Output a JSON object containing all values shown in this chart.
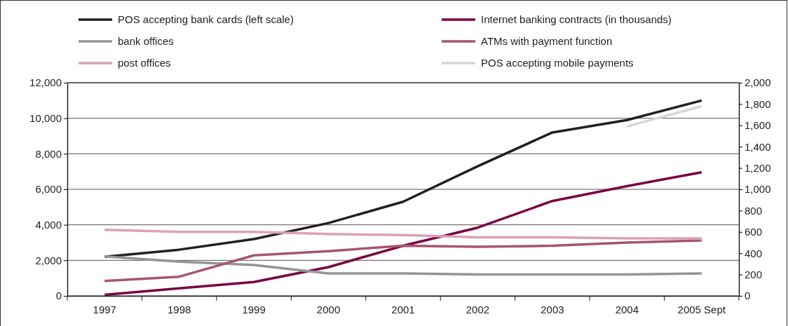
{
  "chart_data": {
    "type": "line",
    "categories": [
      "1997",
      "1998",
      "1999",
      "2000",
      "2001",
      "2002",
      "2003",
      "2004",
      "2005 Sept"
    ],
    "series": [
      {
        "name": "POS accepting bank cards (left scale)",
        "color": "#231f20",
        "values": [
          2200,
          2600,
          3200,
          4100,
          5300,
          7300,
          9200,
          9900,
          11000
        ]
      },
      {
        "name": "Internet banking contracts (in thousands)",
        "color": "#7a0041",
        "axis": "y2",
        "values": [
          10,
          70,
          130,
          270,
          470,
          640,
          890,
          1030,
          1160
        ]
      },
      {
        "name": "bank offices",
        "color": "#939598",
        "axis": "y2",
        "values": [
          370,
          320,
          290,
          210,
          210,
          200,
          200,
          200,
          210
        ]
      },
      {
        "name": "ATMs with payment function",
        "color": "#a8546f",
        "axis": "y2",
        "values": [
          140,
          180,
          380,
          420,
          470,
          460,
          470,
          500,
          520
        ]
      },
      {
        "name": "post offices",
        "color": "#d9a3b5",
        "axis": "y2",
        "values": [
          620,
          600,
          600,
          580,
          570,
          550,
          550,
          540,
          540
        ]
      },
      {
        "name": "POS accepting mobile payments",
        "color": "#d6d6d6",
        "axis": "y2",
        "values": [
          null,
          null,
          null,
          null,
          null,
          null,
          null,
          1590,
          1780
        ]
      }
    ],
    "ylim": [
      0,
      12000
    ],
    "yticks": [
      {
        "value": 0,
        "label": "0"
      },
      {
        "value": 2000,
        "label": "2,000"
      },
      {
        "value": 4000,
        "label": "4,000"
      },
      {
        "value": 6000,
        "label": "6,000"
      },
      {
        "value": 8000,
        "label": "8,000"
      },
      {
        "value": 10000,
        "label": "10,000"
      },
      {
        "value": 12000,
        "label": "12,000"
      }
    ],
    "y2lim": [
      0,
      2000
    ],
    "y2ticks": [
      {
        "value": 0,
        "label": "0"
      },
      {
        "value": 200,
        "label": "200"
      },
      {
        "value": 400,
        "label": "400"
      },
      {
        "value": 600,
        "label": "600"
      },
      {
        "value": 800,
        "label": "800"
      },
      {
        "value": 1000,
        "label": "1,000"
      },
      {
        "value": 1200,
        "label": "1,200"
      },
      {
        "value": 1400,
        "label": "1,400"
      },
      {
        "value": 1600,
        "label": "1,600"
      },
      {
        "value": 1800,
        "label": "1,800"
      },
      {
        "value": 2000,
        "label": "2,000"
      }
    ],
    "grid": "y",
    "legend": "top",
    "marker": "none",
    "line_style": "solid"
  }
}
